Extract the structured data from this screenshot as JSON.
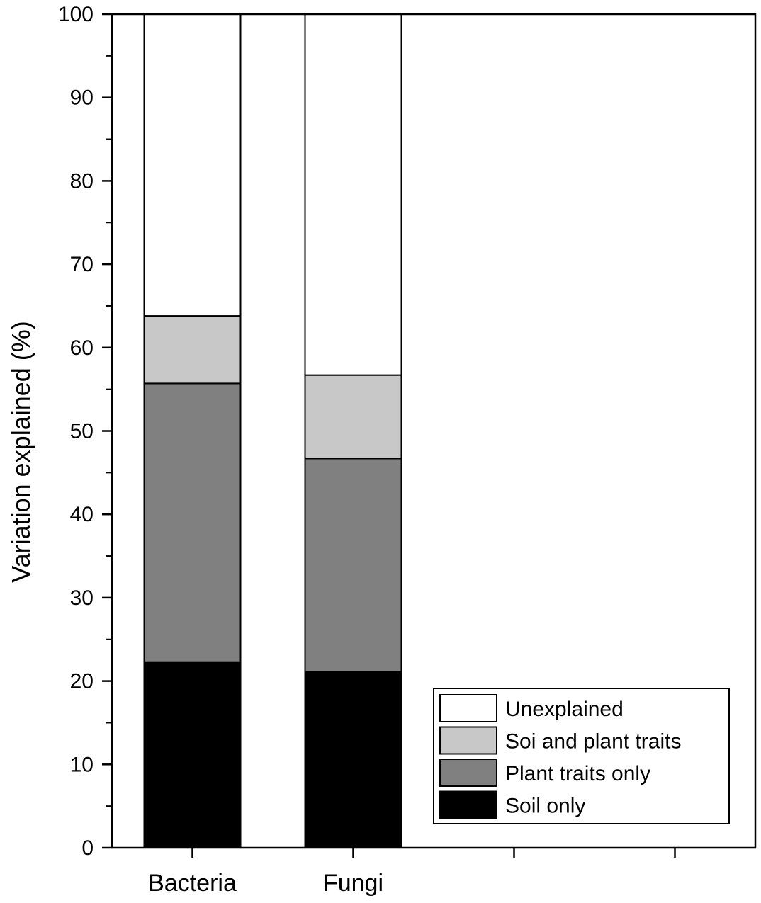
{
  "chart_data": {
    "type": "bar",
    "stacked": true,
    "categories": [
      "Bacteria",
      "Fungi"
    ],
    "x_slots": 4,
    "series": [
      {
        "name": "Soil only",
        "values": [
          22.2,
          21.1
        ],
        "color": "#000000"
      },
      {
        "name": "Plant traits only",
        "values": [
          33.5,
          25.6
        ],
        "color": "#808080"
      },
      {
        "name": "Soi and plant traits",
        "values": [
          8.1,
          10.0
        ],
        "color": "#c8c8c8"
      },
      {
        "name": "Unexplained",
        "values": [
          36.2,
          43.3
        ],
        "color": "#ffffff"
      }
    ],
    "legend_order": [
      "Unexplained",
      "Soi and plant traits",
      "Plant traits only",
      "Soil only"
    ],
    "legend_position": "bottom-right",
    "ylabel": "Variation explained (%)",
    "xlabel": "",
    "ylim": [
      0,
      100
    ],
    "y_ticks": [
      "0",
      "10",
      "20",
      "30",
      "40",
      "50",
      "60",
      "70",
      "80",
      "90",
      "100"
    ],
    "grid": false
  }
}
